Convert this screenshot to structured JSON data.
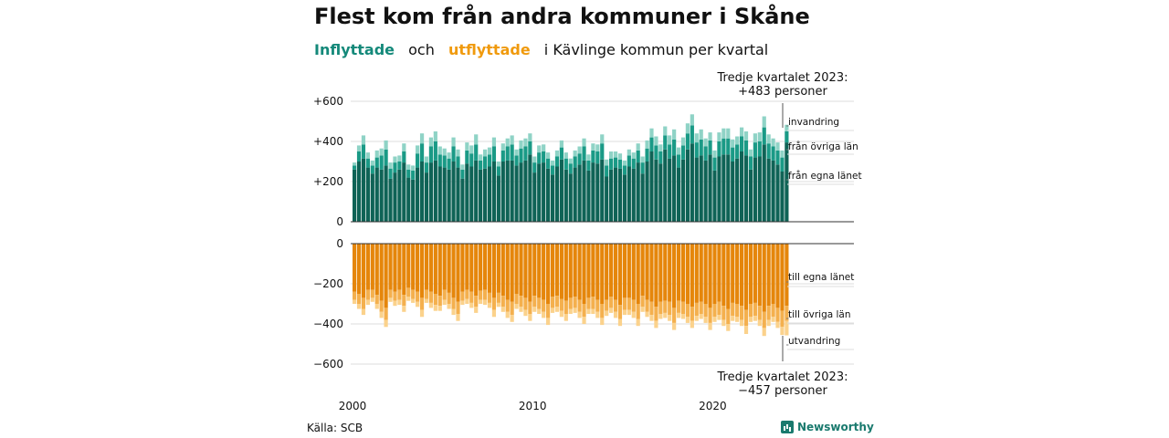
{
  "title": "Flest kom från andra kommuner i Skåne",
  "subtitle": {
    "inflow_word": "Inflyttade",
    "and_word": "och",
    "outflow_word": "utflyttade",
    "rest": "i Kävlinge kommun per kvartal"
  },
  "source": "Källa: SCB",
  "brand": "Newsworthy",
  "colors": {
    "in_same_county": "#0f6356",
    "in_other_counties": "#1a9a86",
    "in_immigration": "#8fd3c6",
    "out_same_county": "#e5860b",
    "out_other_counties": "#f4b04e",
    "out_emigration": "#fbd28c",
    "axis": "#333333",
    "grid": "#dddddd"
  },
  "chart_data": {
    "type": "bar",
    "subtype": "stacked-diverging",
    "x_start": "2000 Q1",
    "x_end": "2023 Q3",
    "x_tick_labels": [
      "2000",
      "2010",
      "2020"
    ],
    "y_ticks_upper": [
      "+600",
      "+400",
      "+200",
      "0"
    ],
    "y_ticks_lower": [
      "0",
      "−200",
      "−400",
      "−600"
    ],
    "ylim_upper": [
      0,
      600
    ],
    "ylim_lower": [
      -600,
      0
    ],
    "grid": true,
    "annotation_top": {
      "line1": "Tredje kvartalet 2023:",
      "line2": "+483 personer"
    },
    "annotation_bottom": {
      "line1": "Tredje kvartalet 2023:",
      "line2": "−457 personer"
    },
    "series_labels": {
      "invandring": "invandring",
      "fran_ovriga_lan": "från övriga län",
      "fran_egna_lanet": "från egna länet",
      "till_egna_lanet": "till egna länet",
      "till_ovriga_lan": "till övriga län",
      "utvandring": "utvandring"
    },
    "series": [
      {
        "name": "från egna länet",
        "values": [
          260,
          300,
          315,
          270,
          240,
          270,
          260,
          280,
          215,
          245,
          260,
          295,
          220,
          210,
          270,
          300,
          245,
          295,
          305,
          275,
          270,
          260,
          300,
          270,
          215,
          290,
          275,
          305,
          260,
          265,
          275,
          300,
          230,
          300,
          305,
          305,
          280,
          295,
          305,
          335,
          245,
          290,
          295,
          265,
          235,
          275,
          310,
          260,
          240,
          270,
          285,
          305,
          255,
          295,
          290,
          310,
          225,
          260,
          270,
          265,
          235,
          275,
          265,
          295,
          240,
          300,
          350,
          310,
          290,
          360,
          315,
          330,
          270,
          310,
          360,
          390,
          320,
          330,
          305,
          335,
          255,
          325,
          335,
          335,
          300,
          315,
          350,
          330,
          260,
          320,
          325,
          385,
          315,
          305,
          285,
          250,
          395
        ]
      },
      {
        "name": "från övriga län",
        "values": [
          20,
          50,
          70,
          45,
          40,
          50,
          70,
          80,
          50,
          50,
          40,
          55,
          40,
          45,
          70,
          90,
          50,
          80,
          95,
          60,
          60,
          55,
          75,
          55,
          45,
          65,
          65,
          80,
          45,
          60,
          60,
          75,
          45,
          55,
          70,
          80,
          50,
          70,
          70,
          65,
          50,
          55,
          55,
          50,
          45,
          50,
          60,
          55,
          50,
          55,
          55,
          70,
          50,
          60,
          60,
          80,
          55,
          55,
          50,
          45,
          45,
          55,
          50,
          60,
          55,
          65,
          70,
          70,
          60,
          70,
          70,
          80,
          65,
          70,
          80,
          90,
          75,
          80,
          70,
          70,
          65,
          75,
          80,
          80,
          70,
          70,
          75,
          75,
          65,
          75,
          75,
          85,
          75,
          70,
          70,
          70,
          55
        ]
      },
      {
        "name": "invandring",
        "values": [
          15,
          30,
          45,
          30,
          25,
          35,
          35,
          45,
          30,
          30,
          30,
          40,
          25,
          25,
          40,
          50,
          30,
          45,
          50,
          40,
          35,
          30,
          45,
          35,
          25,
          40,
          40,
          50,
          30,
          35,
          35,
          45,
          25,
          35,
          40,
          45,
          30,
          40,
          40,
          40,
          30,
          35,
          35,
          30,
          25,
          30,
          35,
          30,
          25,
          30,
          35,
          40,
          30,
          35,
          35,
          45,
          30,
          35,
          30,
          30,
          25,
          30,
          30,
          35,
          30,
          40,
          45,
          45,
          35,
          45,
          45,
          50,
          35,
          40,
          50,
          55,
          45,
          50,
          40,
          40,
          35,
          45,
          50,
          50,
          40,
          40,
          45,
          45,
          35,
          45,
          45,
          55,
          45,
          40,
          40,
          35,
          33
        ]
      },
      {
        "name": "till egna länet",
        "values": [
          -240,
          -250,
          -270,
          -230,
          -230,
          -255,
          -285,
          -320,
          -230,
          -240,
          -230,
          -255,
          -220,
          -230,
          -240,
          -270,
          -230,
          -240,
          -250,
          -260,
          -230,
          -245,
          -270,
          -290,
          -240,
          -230,
          -240,
          -260,
          -235,
          -230,
          -245,
          -270,
          -245,
          -260,
          -280,
          -290,
          -250,
          -260,
          -270,
          -290,
          -260,
          -270,
          -280,
          -300,
          -265,
          -260,
          -275,
          -285,
          -270,
          -265,
          -280,
          -300,
          -270,
          -265,
          -280,
          -300,
          -280,
          -265,
          -280,
          -305,
          -270,
          -270,
          -280,
          -300,
          -260,
          -280,
          -290,
          -315,
          -290,
          -285,
          -290,
          -320,
          -285,
          -290,
          -300,
          -315,
          -295,
          -290,
          -300,
          -320,
          -300,
          -290,
          -310,
          -325,
          -295,
          -300,
          -310,
          -330,
          -300,
          -295,
          -310,
          -340,
          -310,
          -300,
          -320,
          -335,
          -310
        ]
      },
      {
        "name": "till övriga län",
        "values": [
          -40,
          -50,
          -55,
          -50,
          -40,
          -45,
          -55,
          -60,
          -40,
          -45,
          -50,
          -55,
          -45,
          -45,
          -50,
          -60,
          -45,
          -55,
          -55,
          -50,
          -50,
          -55,
          -55,
          -60,
          -45,
          -45,
          -55,
          -55,
          -45,
          -50,
          -50,
          -60,
          -50,
          -55,
          -60,
          -65,
          -50,
          -55,
          -60,
          -60,
          -55,
          -55,
          -60,
          -70,
          -55,
          -55,
          -60,
          -65,
          -55,
          -55,
          -60,
          -65,
          -55,
          -60,
          -60,
          -70,
          -55,
          -55,
          -60,
          -70,
          -60,
          -60,
          -60,
          -75,
          -55,
          -60,
          -65,
          -70,
          -60,
          -60,
          -65,
          -75,
          -60,
          -60,
          -65,
          -70,
          -65,
          -60,
          -65,
          -75,
          -65,
          -65,
          -70,
          -75,
          -65,
          -65,
          -70,
          -80,
          -65,
          -65,
          -70,
          -80,
          -70,
          -65,
          -70,
          -80,
          -75
        ]
      },
      {
        "name": "utvandring",
        "values": [
          -20,
          -25,
          -30,
          -25,
          -20,
          -25,
          -30,
          -35,
          -20,
          -25,
          -25,
          -30,
          -20,
          -20,
          -25,
          -35,
          -20,
          -25,
          -30,
          -25,
          -25,
          -25,
          -30,
          -35,
          -20,
          -25,
          -25,
          -30,
          -20,
          -25,
          -25,
          -35,
          -20,
          -25,
          -30,
          -35,
          -25,
          -25,
          -30,
          -35,
          -25,
          -25,
          -30,
          -35,
          -25,
          -25,
          -30,
          -35,
          -25,
          -25,
          -30,
          -35,
          -25,
          -25,
          -30,
          -35,
          -25,
          -25,
          -30,
          -35,
          -25,
          -25,
          -30,
          -35,
          -25,
          -25,
          -30,
          -35,
          -25,
          -25,
          -30,
          -35,
          -25,
          -25,
          -30,
          -35,
          -25,
          -25,
          -30,
          -35,
          -25,
          -25,
          -30,
          -35,
          -25,
          -25,
          -30,
          -40,
          -25,
          -25,
          -30,
          -40,
          -30,
          -25,
          -30,
          -40,
          -72
        ]
      }
    ]
  }
}
